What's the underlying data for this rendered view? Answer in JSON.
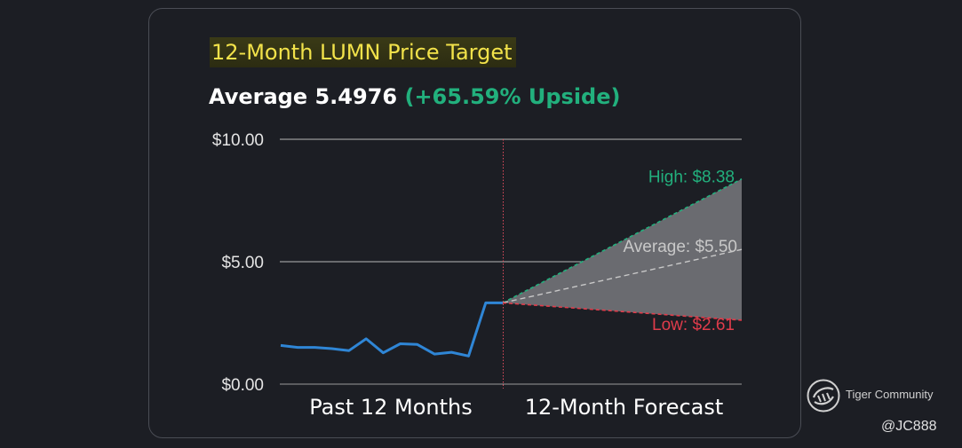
{
  "title": "12-Month LUMN Price Target",
  "average_label": "Average 5.4976",
  "upside_label": "(+65.59% Upside)",
  "watermark": {
    "brand": "Tiger Community",
    "handle": "@JC888",
    "logo_icon": "tiger-community-logo-icon"
  },
  "colors": {
    "history_line": "#2f86d6",
    "high": "#22b07d",
    "low": "#e03c4b",
    "average": "#c8c8c8",
    "forecast_fill": "#6a6b70",
    "title_text": "#f2e24a",
    "upside_text": "#22b07d"
  },
  "chart_data": {
    "type": "line",
    "ylim": [
      0,
      10
    ],
    "yticks": [
      {
        "value": 0,
        "label": "$0.00"
      },
      {
        "value": 5,
        "label": "$5.00"
      },
      {
        "value": 10,
        "label": "$10.00"
      }
    ],
    "xcategories": [
      "Past 12 Months",
      "12-Month Forecast"
    ],
    "grid": true,
    "history": {
      "values": [
        1.58,
        1.5,
        1.5,
        1.45,
        1.37,
        1.85,
        1.28,
        1.65,
        1.62,
        1.23,
        1.3,
        1.15,
        3.32,
        3.32
      ]
    },
    "forecast": {
      "start": 3.32,
      "high": {
        "value": 8.38,
        "label": "High: $8.38"
      },
      "average": {
        "value": 5.5,
        "label": "Average: $5.50"
      },
      "low": {
        "value": 2.61,
        "label": "Low: $2.61"
      }
    }
  }
}
